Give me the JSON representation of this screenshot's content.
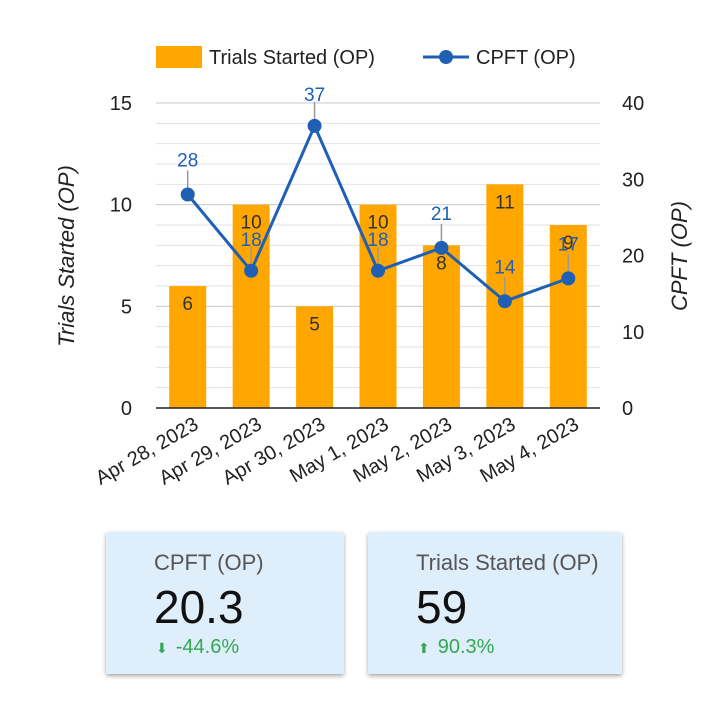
{
  "chart_data": {
    "type": "bar+line",
    "categories": [
      "Apr 28, 2023",
      "Apr 29, 2023",
      "Apr 30, 2023",
      "May 1, 2023",
      "May 2, 2023",
      "May 3, 2023",
      "May 4, 2023"
    ],
    "series": [
      {
        "name": "Trials Started (OP)",
        "type": "bar",
        "axis": "left",
        "color": "#ffa600",
        "values": [
          6,
          10,
          5,
          10,
          8,
          11,
          9
        ]
      },
      {
        "name": "CPFT (OP)",
        "type": "line",
        "axis": "right",
        "color": "#1f5fb4",
        "values": [
          28,
          18,
          37,
          18,
          21,
          14,
          17
        ]
      }
    ],
    "ylabel_left": "Trials Started (OP)",
    "ylabel_right": "CPFT (OP)",
    "ylim_left": [
      0,
      15
    ],
    "ylim_right": [
      0,
      40
    ],
    "yticks_left": [
      "0",
      "5",
      "10",
      "15"
    ],
    "yticks_right": [
      "0",
      "10",
      "20",
      "30",
      "40"
    ],
    "legend_position": "top",
    "grid": true
  },
  "scorecards": [
    {
      "label": "CPFT (OP)",
      "value": "20.3",
      "delta": "-44.6%",
      "direction": "down"
    },
    {
      "label": "Trials Started (OP)",
      "value": "59",
      "delta": "90.3%",
      "direction": "up"
    }
  ]
}
